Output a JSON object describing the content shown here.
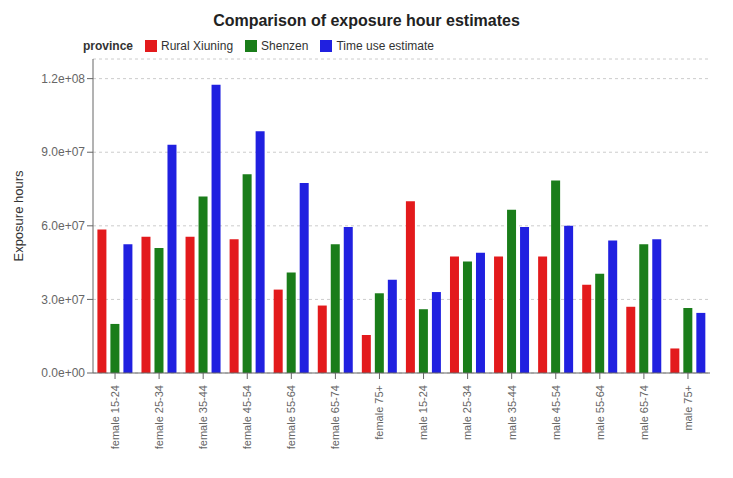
{
  "chart_data": {
    "type": "bar",
    "title": "Comparison of exposure hour estimates",
    "ylabel": "Exposure hours",
    "legend_title": "province",
    "categories": [
      "female 15-24",
      "female 25-34",
      "female 35-44",
      "female 45-54",
      "female 55-64",
      "female 65-74",
      "female 75+",
      "male 15-24",
      "male 25-34",
      "male 35-44",
      "male 45-54",
      "male 55-64",
      "male 65-74",
      "male 75+"
    ],
    "series": [
      {
        "name": "Rural Xiuning",
        "color": "#e31a1c",
        "values": [
          58500000.0,
          55500000.0,
          55500000.0,
          54500000.0,
          34000000.0,
          27500000.0,
          15500000.0,
          70000000.0,
          47500000.0,
          47500000.0,
          47500000.0,
          36000000.0,
          27000000.0,
          10000000.0
        ]
      },
      {
        "name": "Shenzen",
        "color": "#1a7d1a",
        "values": [
          20000000.0,
          51000000.0,
          72000000.0,
          81000000.0,
          41000000.0,
          52500000.0,
          32500000.0,
          26000000.0,
          45500000.0,
          66500000.0,
          78500000.0,
          40500000.0,
          52500000.0,
          26500000.0
        ]
      },
      {
        "name": "Time use estimate",
        "color": "#2020e0",
        "values": [
          52500000.0,
          93000000.0,
          117500000.0,
          98500000.0,
          77500000.0,
          59500000.0,
          38000000.0,
          33000000.0,
          49000000.0,
          59500000.0,
          60000000.0,
          54000000.0,
          54500000.0,
          24500000.0
        ]
      }
    ],
    "ylim": [
      0,
      128000000.0
    ],
    "yticks": [
      {
        "value": 0,
        "label": "0.0e+00"
      },
      {
        "value": 30000000.0,
        "label": "3.0e+07"
      },
      {
        "value": 60000000.0,
        "label": "6.0e+07"
      },
      {
        "value": 90000000.0,
        "label": "9.0e+07"
      },
      {
        "value": 120000000.0,
        "label": "1.2e+08"
      }
    ],
    "grid": true,
    "legend": "upper left"
  }
}
